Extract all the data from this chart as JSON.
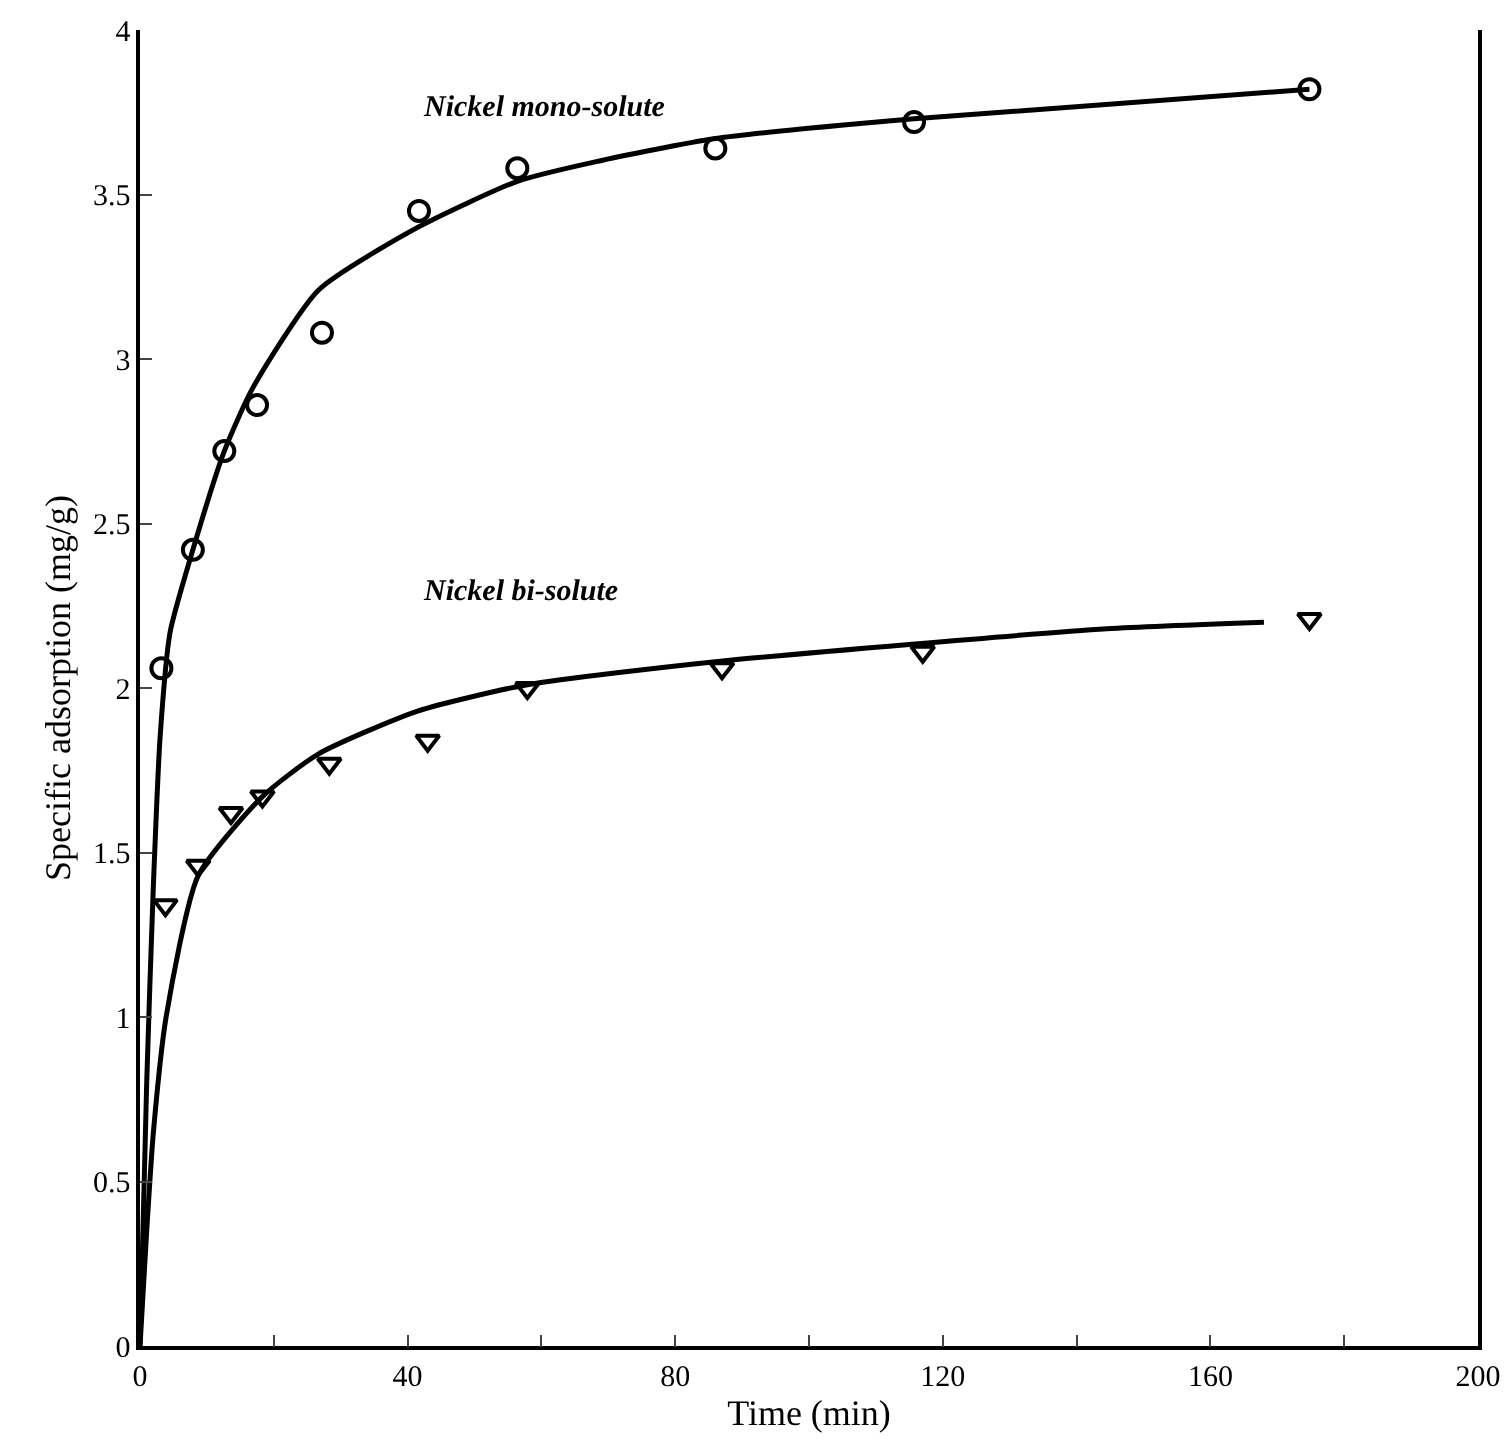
{
  "chart_data": {
    "type": "scatter",
    "xlabel": "Time (min)",
    "ylabel": "Specific adsorption (mg/g)",
    "xlim": [
      0,
      200
    ],
    "xticks": [
      0,
      {
        "value": 20,
        "label": null
      },
      40,
      {
        "value": 60,
        "label": null
      },
      80,
      {
        "value": 100,
        "label": null
      },
      120,
      {
        "value": 140,
        "label": null
      },
      160,
      {
        "value": 180,
        "label": null
      },
      200
    ],
    "ylim": [
      0,
      4
    ],
    "yticks": [
      0,
      0.5,
      1,
      1.5,
      2,
      2.5,
      3,
      3.5,
      4
    ],
    "grid": false,
    "legend": false,
    "series": [
      {
        "marker": "circle",
        "color": "#000000",
        "x": [
          3.2,
          7.9,
          12.6,
          17.5,
          27.2,
          41.7,
          56.4,
          86,
          115.7,
          174.8
        ],
        "values": [
          2.06,
          2.42,
          2.72,
          2.86,
          3.08,
          3.45,
          3.58,
          3.64,
          3.72,
          3.82
        ]
      },
      {
        "type": "line",
        "name": "Nickel mono-solute",
        "line_style": "solid",
        "color": "#000000",
        "x": [
          0,
          1,
          2,
          3,
          4.5,
          7.9,
          12.6,
          16.8,
          26.7,
          41.5,
          56.4,
          68.2,
          86,
          115.7,
          174.8
        ],
        "values": [
          0,
          0.8,
          1.4,
          1.85,
          2.17,
          2.42,
          2.72,
          2.91,
          3.21,
          3.4,
          3.54,
          3.6,
          3.67,
          3.73,
          3.82
        ]
      },
      {
        "marker": "triangle",
        "color": "#000000",
        "x": [
          3.8,
          8.7,
          13.6,
          18.3,
          28.3,
          43,
          57.9,
          87,
          117,
          174.8
        ],
        "values": [
          1.34,
          1.46,
          1.62,
          1.67,
          1.77,
          1.84,
          2.0,
          2.06,
          2.11,
          2.21
        ]
      },
      {
        "type": "line",
        "name": "Nickel bi-solute",
        "line_style": "solid",
        "color": "#000000",
        "x": [
          0,
          1,
          2,
          3.9,
          8.7,
          18.3,
          26.7,
          41.5,
          57.9,
          86,
          144.5,
          168
        ],
        "values": [
          0,
          0.35,
          0.65,
          1.0,
          1.43,
          1.67,
          1.8,
          1.93,
          2.01,
          2.08,
          2.18,
          2.2
        ]
      }
    ]
  }
}
